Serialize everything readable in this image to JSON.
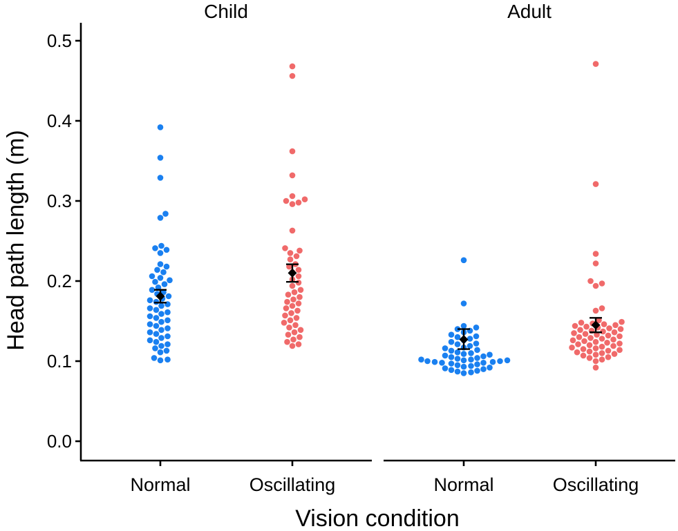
{
  "chart_data": {
    "type": "scatter",
    "subtype": "beeswarm with mean and error bars",
    "ylabel": "Head path length (m)",
    "xlabel": "Vision condition",
    "ylim": [
      0.0,
      0.5
    ],
    "yticks": [
      "0.0",
      "0.1",
      "0.2",
      "0.3",
      "0.4",
      "0.5"
    ],
    "grid": false,
    "legend": "none",
    "colors": {
      "Normal": "#1a80f0",
      "Oscillating": "#f06a6a",
      "mean": "#000000"
    },
    "panels": [
      {
        "title": "Child",
        "groups": [
          {
            "category": "Normal",
            "color_key": "Normal",
            "mean": 0.181,
            "err_low": 0.173,
            "err_high": 0.189,
            "points": [
              0.392,
              0.354,
              0.329,
              0.284,
              0.279,
              0.244,
              0.241,
              0.239,
              0.235,
              0.221,
              0.218,
              0.214,
              0.211,
              0.206,
              0.204,
              0.201,
              0.199,
              0.196,
              0.192,
              0.189,
              0.186,
              0.184,
              0.181,
              0.178,
              0.176,
              0.174,
              0.171,
              0.169,
              0.166,
              0.164,
              0.161,
              0.159,
              0.156,
              0.154,
              0.151,
              0.149,
              0.146,
              0.144,
              0.141,
              0.139,
              0.136,
              0.134,
              0.131,
              0.129,
              0.126,
              0.124,
              0.121,
              0.119,
              0.116,
              0.113,
              0.111,
              0.104,
              0.102,
              0.101
            ]
          },
          {
            "category": "Oscillating",
            "color_key": "Oscillating",
            "mean": 0.21,
            "err_low": 0.199,
            "err_high": 0.221,
            "points": [
              0.468,
              0.456,
              0.362,
              0.332,
              0.306,
              0.302,
              0.3,
              0.298,
              0.296,
              0.263,
              0.241,
              0.238,
              0.235,
              0.231,
              0.227,
              0.221,
              0.218,
              0.214,
              0.211,
              0.206,
              0.202,
              0.198,
              0.194,
              0.189,
              0.186,
              0.183,
              0.18,
              0.177,
              0.174,
              0.172,
              0.169,
              0.166,
              0.163,
              0.16,
              0.157,
              0.154,
              0.151,
              0.148,
              0.145,
              0.142,
              0.139,
              0.136,
              0.133,
              0.13,
              0.127,
              0.124,
              0.121,
              0.119
            ]
          }
        ]
      },
      {
        "title": "Adult",
        "groups": [
          {
            "category": "Normal",
            "color_key": "Normal",
            "mean": 0.127,
            "err_low": 0.115,
            "err_high": 0.14,
            "points": [
              0.226,
              0.172,
              0.144,
              0.142,
              0.14,
              0.138,
              0.136,
              0.133,
              0.131,
              0.13,
              0.128,
              0.126,
              0.124,
              0.122,
              0.121,
              0.119,
              0.117,
              0.116,
              0.114,
              0.113,
              0.111,
              0.11,
              0.109,
              0.108,
              0.107,
              0.106,
              0.105,
              0.104,
              0.103,
              0.102,
              0.102,
              0.101,
              0.101,
              0.1,
              0.1,
              0.099,
              0.099,
              0.098,
              0.098,
              0.097,
              0.096,
              0.095,
              0.094,
              0.093,
              0.092,
              0.091,
              0.09,
              0.089,
              0.088,
              0.087,
              0.086,
              0.085
            ]
          },
          {
            "category": "Oscillating",
            "color_key": "Oscillating",
            "mean": 0.145,
            "err_low": 0.136,
            "err_high": 0.154,
            "points": [
              0.471,
              0.321,
              0.234,
              0.222,
              0.2,
              0.197,
              0.194,
              0.166,
              0.163,
              0.151,
              0.149,
              0.148,
              0.147,
              0.146,
              0.145,
              0.144,
              0.143,
              0.142,
              0.141,
              0.14,
              0.139,
              0.138,
              0.137,
              0.136,
              0.135,
              0.134,
              0.133,
              0.132,
              0.131,
              0.13,
              0.129,
              0.128,
              0.127,
              0.126,
              0.125,
              0.124,
              0.123,
              0.122,
              0.121,
              0.12,
              0.119,
              0.118,
              0.117,
              0.116,
              0.115,
              0.114,
              0.113,
              0.112,
              0.111,
              0.11,
              0.109,
              0.108,
              0.107,
              0.105,
              0.104,
              0.102,
              0.1,
              0.092
            ]
          }
        ]
      }
    ]
  }
}
